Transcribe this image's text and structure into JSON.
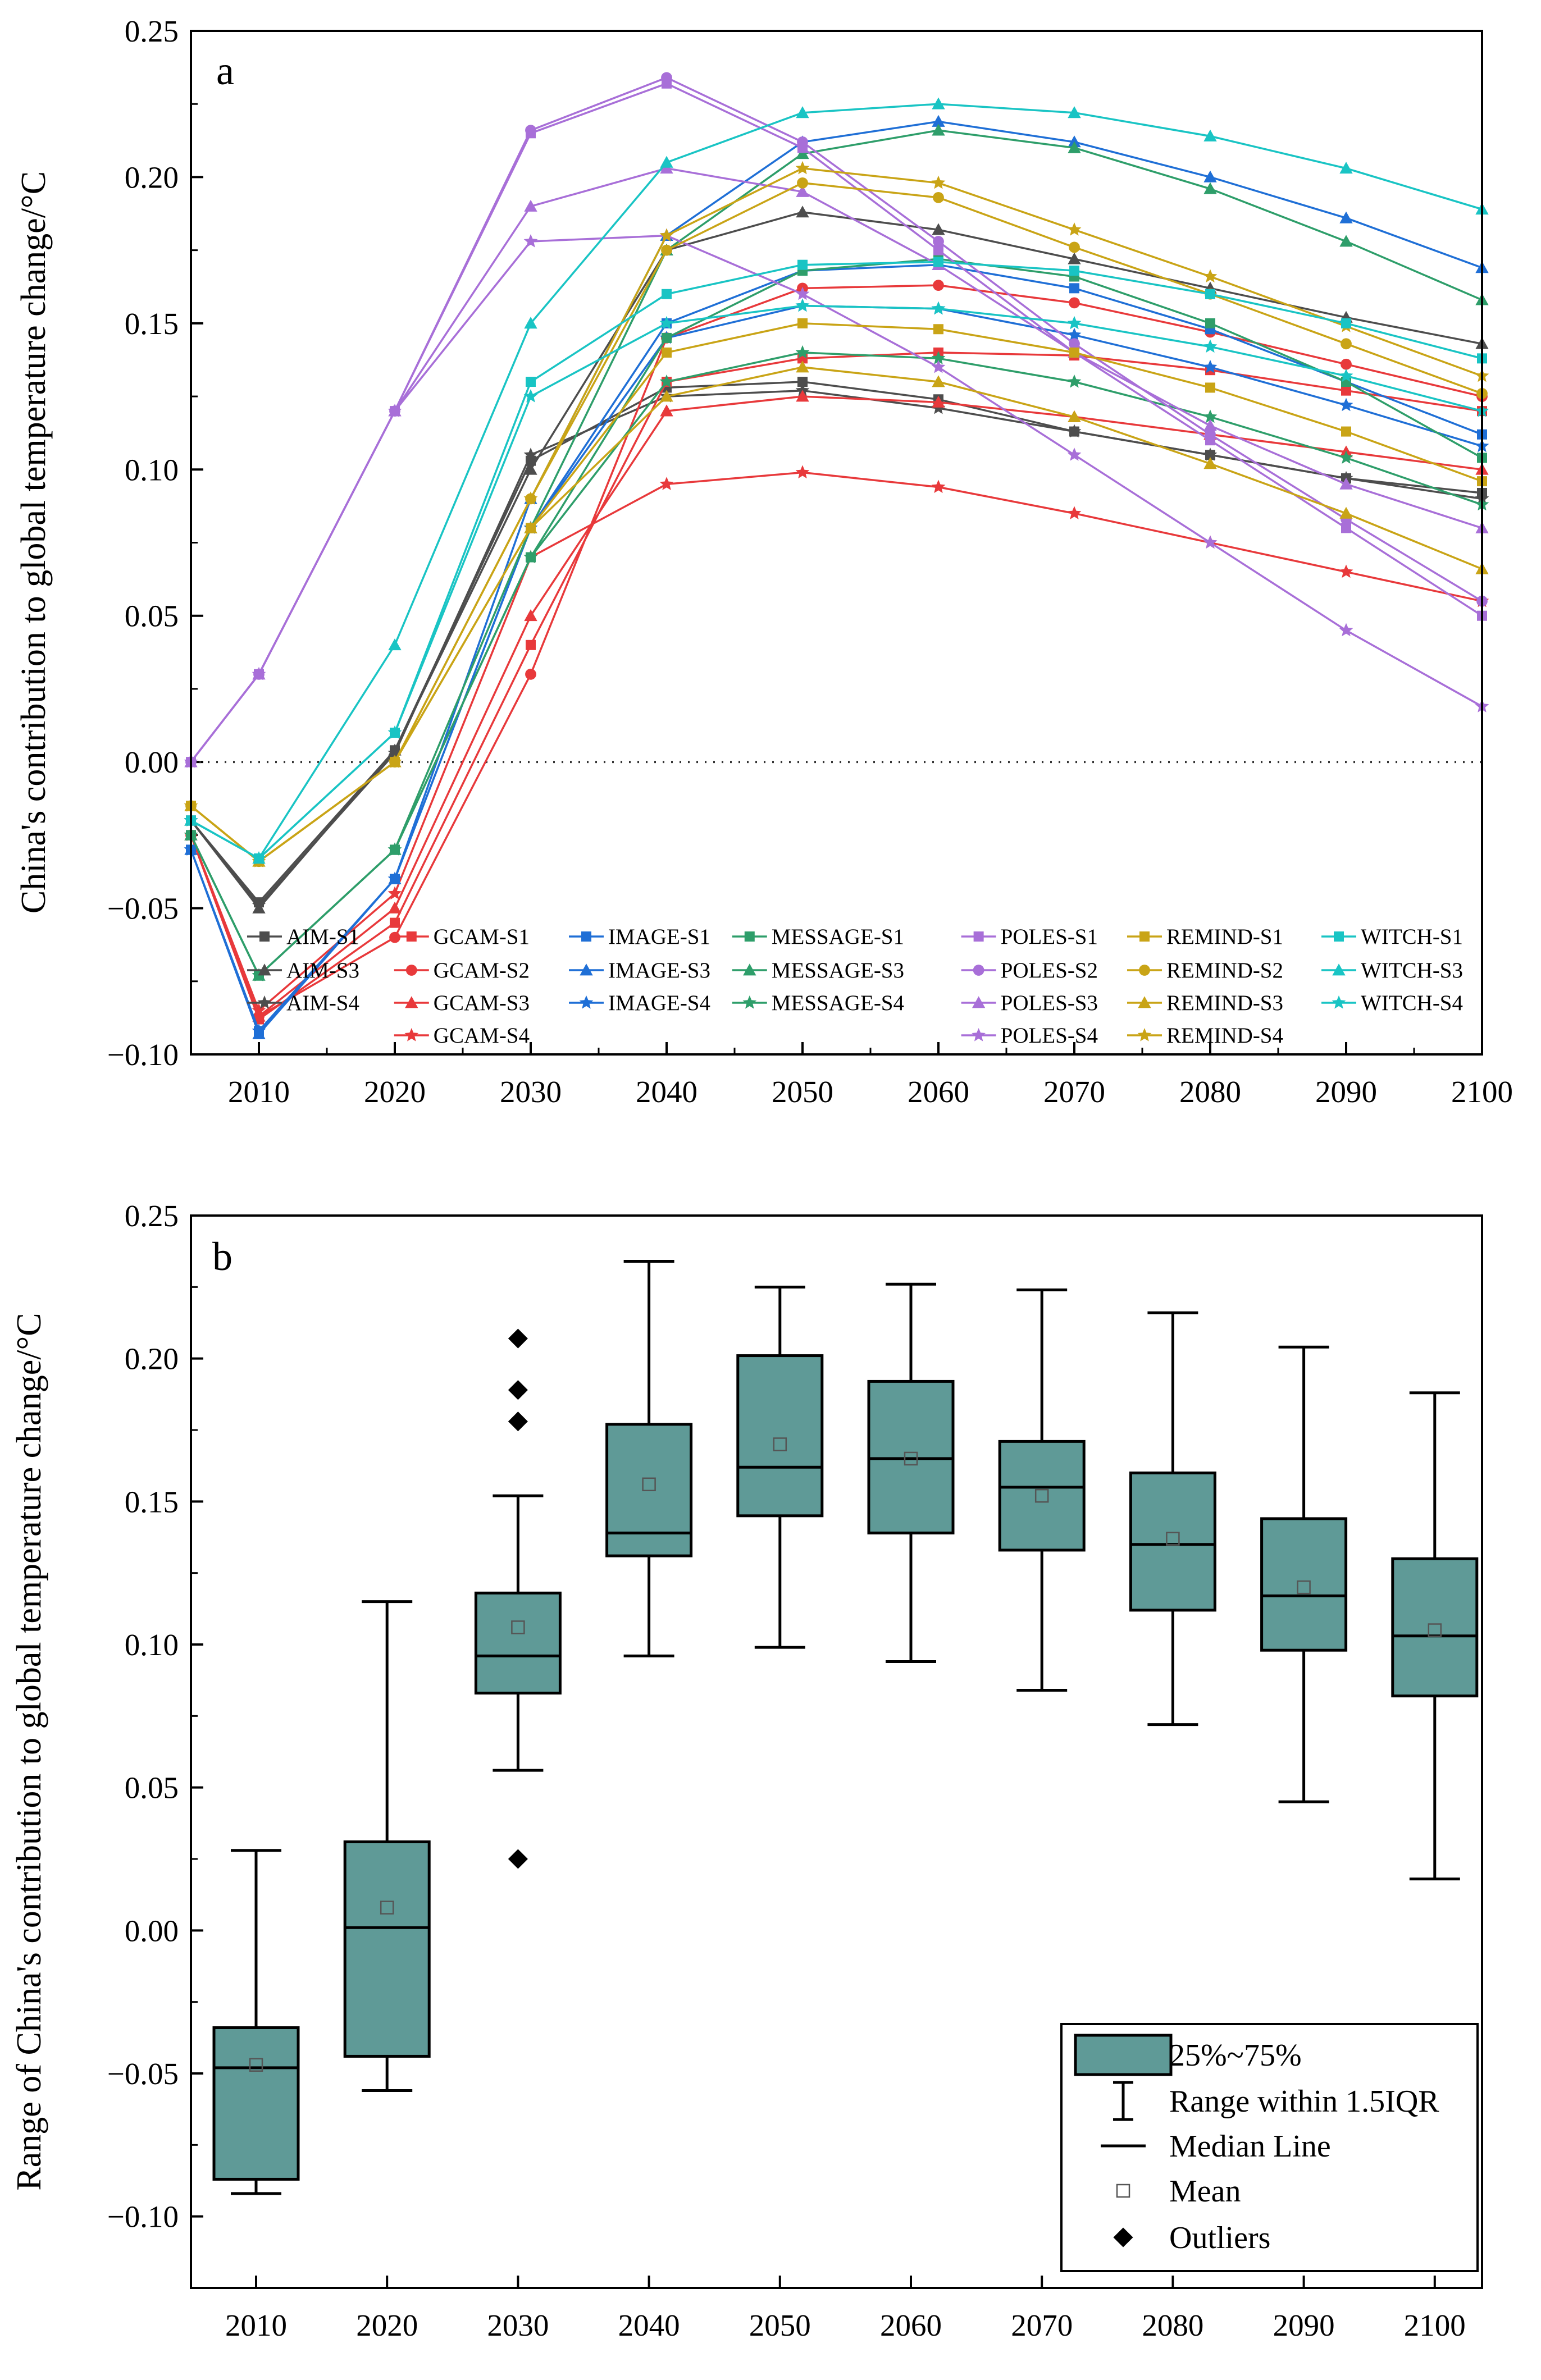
{
  "chart_data": [
    {
      "type": "line",
      "panel_label": "a",
      "ylabel": "China's contribution to global temperature change/°C",
      "xlabel": "",
      "xlim": [
        2005,
        2100
      ],
      "ylim": [
        -0.1,
        0.25
      ],
      "xticks": [
        2010,
        2020,
        2030,
        2040,
        2050,
        2060,
        2070,
        2080,
        2090,
        2100
      ],
      "xtick_labels": [
        "2010",
        "2020",
        "2030",
        "2040",
        "2050",
        "2060",
        "2070",
        "2080",
        "2090",
        "2100"
      ],
      "yticks": [
        -0.1,
        -0.05,
        0.0,
        0.05,
        0.1,
        0.15,
        0.2,
        0.25
      ],
      "ytick_labels": [
        "−0.10",
        "−0.05",
        "0.00",
        "0.05",
        "0.10",
        "0.15",
        "0.20",
        "0.25"
      ],
      "zero_line": "dotted",
      "grid": false,
      "legend_position": "bottom",
      "series": [
        {
          "name": "AIM-S1",
          "color": "#4d4d4d",
          "marker": "square",
          "x": [
            2005,
            2010,
            2020,
            2030,
            2040,
            2050,
            2060,
            2070,
            2080,
            2090,
            2100
          ],
          "values": [
            -0.02,
            -0.048,
            0.004,
            0.103,
            0.128,
            0.13,
            0.124,
            0.113,
            0.105,
            0.097,
            0.092
          ]
        },
        {
          "name": "AIM-S3",
          "color": "#4d4d4d",
          "marker": "triangle-up",
          "x": [
            2005,
            2010,
            2020,
            2030,
            2040,
            2050,
            2060,
            2070,
            2080,
            2090,
            2100
          ],
          "values": [
            -0.02,
            -0.05,
            0.004,
            0.1,
            0.175,
            0.188,
            0.182,
            0.172,
            0.162,
            0.152,
            0.143
          ]
        },
        {
          "name": "AIM-S4",
          "color": "#4d4d4d",
          "marker": "star",
          "x": [
            2005,
            2010,
            2020,
            2030,
            2040,
            2050,
            2060,
            2070,
            2080,
            2090,
            2100
          ],
          "values": [
            -0.02,
            -0.049,
            0.003,
            0.105,
            0.125,
            0.127,
            0.121,
            0.113,
            0.105,
            0.097,
            0.09
          ]
        },
        {
          "name": "GCAM-S1",
          "color": "#e8393b",
          "marker": "square",
          "x": [
            2005,
            2010,
            2020,
            2030,
            2040,
            2050,
            2060,
            2070,
            2080,
            2090,
            2100
          ],
          "values": [
            -0.025,
            -0.088,
            -0.055,
            0.04,
            0.13,
            0.138,
            0.14,
            0.139,
            0.134,
            0.127,
            0.12
          ]
        },
        {
          "name": "GCAM-S2",
          "color": "#e8393b",
          "marker": "circle",
          "x": [
            2005,
            2010,
            2020,
            2030,
            2040,
            2050,
            2060,
            2070,
            2080,
            2090,
            2100
          ],
          "values": [
            -0.025,
            -0.087,
            -0.06,
            0.03,
            0.145,
            0.162,
            0.163,
            0.157,
            0.147,
            0.136,
            0.125
          ]
        },
        {
          "name": "GCAM-S3",
          "color": "#e8393b",
          "marker": "triangle-up",
          "x": [
            2005,
            2010,
            2020,
            2030,
            2040,
            2050,
            2060,
            2070,
            2080,
            2090,
            2100
          ],
          "values": [
            -0.025,
            -0.087,
            -0.05,
            0.05,
            0.12,
            0.125,
            0.123,
            0.118,
            0.112,
            0.106,
            0.1
          ]
        },
        {
          "name": "GCAM-S4",
          "color": "#e8393b",
          "marker": "star",
          "x": [
            2005,
            2010,
            2020,
            2030,
            2040,
            2050,
            2060,
            2070,
            2080,
            2090,
            2100
          ],
          "values": [
            -0.025,
            -0.085,
            -0.045,
            0.07,
            0.095,
            0.099,
            0.094,
            0.085,
            0.075,
            0.065,
            0.055
          ]
        },
        {
          "name": "IMAGE-S1",
          "color": "#1f6fd6",
          "marker": "square",
          "x": [
            2005,
            2010,
            2020,
            2030,
            2040,
            2050,
            2060,
            2070,
            2080,
            2090,
            2100
          ],
          "values": [
            -0.03,
            -0.092,
            -0.04,
            0.08,
            0.15,
            0.168,
            0.17,
            0.162,
            0.148,
            0.13,
            0.112
          ]
        },
        {
          "name": "IMAGE-S3",
          "color": "#1f6fd6",
          "marker": "triangle-up",
          "x": [
            2005,
            2010,
            2020,
            2030,
            2040,
            2050,
            2060,
            2070,
            2080,
            2090,
            2100
          ],
          "values": [
            -0.03,
            -0.093,
            -0.04,
            0.09,
            0.18,
            0.212,
            0.219,
            0.212,
            0.2,
            0.186,
            0.169
          ]
        },
        {
          "name": "IMAGE-S4",
          "color": "#1f6fd6",
          "marker": "star",
          "x": [
            2005,
            2010,
            2020,
            2030,
            2040,
            2050,
            2060,
            2070,
            2080,
            2090,
            2100
          ],
          "values": [
            -0.03,
            -0.092,
            -0.04,
            0.08,
            0.145,
            0.156,
            0.155,
            0.146,
            0.135,
            0.122,
            0.108
          ]
        },
        {
          "name": "MESSAGE-S1",
          "color": "#2e9e6a",
          "marker": "square",
          "x": [
            2005,
            2010,
            2020,
            2030,
            2040,
            2050,
            2060,
            2070,
            2080,
            2090,
            2100
          ],
          "values": [
            -0.025,
            -0.073,
            -0.03,
            0.07,
            0.145,
            0.168,
            0.172,
            0.166,
            0.15,
            0.13,
            0.104
          ]
        },
        {
          "name": "MESSAGE-S3",
          "color": "#2e9e6a",
          "marker": "triangle-up",
          "x": [
            2005,
            2010,
            2020,
            2030,
            2040,
            2050,
            2060,
            2070,
            2080,
            2090,
            2100
          ],
          "values": [
            -0.025,
            -0.073,
            -0.03,
            0.08,
            0.175,
            0.208,
            0.216,
            0.21,
            0.196,
            0.178,
            0.158
          ]
        },
        {
          "name": "MESSAGE-S4",
          "color": "#2e9e6a",
          "marker": "star",
          "x": [
            2005,
            2010,
            2020,
            2030,
            2040,
            2050,
            2060,
            2070,
            2080,
            2090,
            2100
          ],
          "values": [
            -0.025,
            -0.073,
            -0.03,
            0.07,
            0.13,
            0.14,
            0.138,
            0.13,
            0.118,
            0.104,
            0.088
          ]
        },
        {
          "name": "POLES-S1",
          "color": "#a86fd8",
          "marker": "square",
          "x": [
            2005,
            2010,
            2020,
            2030,
            2040,
            2050,
            2060,
            2070,
            2080,
            2090,
            2100
          ],
          "values": [
            0.0,
            0.03,
            0.12,
            0.215,
            0.232,
            0.21,
            0.175,
            0.14,
            0.11,
            0.08,
            0.05
          ]
        },
        {
          "name": "POLES-S2",
          "color": "#a86fd8",
          "marker": "circle",
          "x": [
            2005,
            2010,
            2020,
            2030,
            2040,
            2050,
            2060,
            2070,
            2080,
            2090,
            2100
          ],
          "values": [
            0.0,
            0.03,
            0.12,
            0.216,
            0.234,
            0.212,
            0.178,
            0.143,
            0.112,
            0.083,
            0.055
          ]
        },
        {
          "name": "POLES-S3",
          "color": "#a86fd8",
          "marker": "triangle-up",
          "x": [
            2005,
            2010,
            2020,
            2030,
            2040,
            2050,
            2060,
            2070,
            2080,
            2090,
            2100
          ],
          "values": [
            0.0,
            0.03,
            0.12,
            0.19,
            0.203,
            0.195,
            0.17,
            0.14,
            0.115,
            0.095,
            0.08
          ]
        },
        {
          "name": "POLES-S4",
          "color": "#a86fd8",
          "marker": "star",
          "x": [
            2005,
            2010,
            2020,
            2030,
            2040,
            2050,
            2060,
            2070,
            2080,
            2090,
            2100
          ],
          "values": [
            0.0,
            0.03,
            0.12,
            0.178,
            0.18,
            0.16,
            0.135,
            0.105,
            0.075,
            0.045,
            0.019
          ]
        },
        {
          "name": "REMIND-S1",
          "color": "#c9a416",
          "marker": "square",
          "x": [
            2005,
            2010,
            2020,
            2030,
            2040,
            2050,
            2060,
            2070,
            2080,
            2090,
            2100
          ],
          "values": [
            -0.015,
            -0.034,
            0.0,
            0.08,
            0.14,
            0.15,
            0.148,
            0.14,
            0.128,
            0.113,
            0.096
          ]
        },
        {
          "name": "REMIND-S2",
          "color": "#c9a416",
          "marker": "circle",
          "x": [
            2005,
            2010,
            2020,
            2030,
            2040,
            2050,
            2060,
            2070,
            2080,
            2090,
            2100
          ],
          "values": [
            -0.015,
            -0.034,
            0.0,
            0.09,
            0.175,
            0.198,
            0.193,
            0.176,
            0.16,
            0.143,
            0.126
          ]
        },
        {
          "name": "REMIND-S3",
          "color": "#c9a416",
          "marker": "triangle-up",
          "x": [
            2005,
            2010,
            2020,
            2030,
            2040,
            2050,
            2060,
            2070,
            2080,
            2090,
            2100
          ],
          "values": [
            -0.015,
            -0.034,
            0.0,
            0.08,
            0.125,
            0.135,
            0.13,
            0.118,
            0.102,
            0.085,
            0.066
          ]
        },
        {
          "name": "REMIND-S4",
          "color": "#c9a416",
          "marker": "star",
          "x": [
            2005,
            2010,
            2020,
            2030,
            2040,
            2050,
            2060,
            2070,
            2080,
            2090,
            2100
          ],
          "values": [
            -0.015,
            -0.034,
            0.0,
            0.09,
            0.18,
            0.203,
            0.198,
            0.182,
            0.166,
            0.149,
            0.132
          ]
        },
        {
          "name": "WITCH-S1",
          "color": "#19c4c4",
          "marker": "square",
          "x": [
            2005,
            2010,
            2020,
            2030,
            2040,
            2050,
            2060,
            2070,
            2080,
            2090,
            2100
          ],
          "values": [
            -0.02,
            -0.033,
            0.01,
            0.13,
            0.16,
            0.17,
            0.171,
            0.168,
            0.16,
            0.15,
            0.138
          ]
        },
        {
          "name": "WITCH-S3",
          "color": "#19c4c4",
          "marker": "triangle-up",
          "x": [
            2005,
            2010,
            2020,
            2030,
            2040,
            2050,
            2060,
            2070,
            2080,
            2090,
            2100
          ],
          "values": [
            -0.02,
            -0.033,
            0.04,
            0.15,
            0.205,
            0.222,
            0.225,
            0.222,
            0.214,
            0.203,
            0.189
          ]
        },
        {
          "name": "WITCH-S4",
          "color": "#19c4c4",
          "marker": "star",
          "x": [
            2005,
            2010,
            2020,
            2030,
            2040,
            2050,
            2060,
            2070,
            2080,
            2090,
            2100
          ],
          "values": [
            -0.02,
            -0.033,
            0.01,
            0.125,
            0.15,
            0.156,
            0.155,
            0.15,
            0.142,
            0.132,
            0.12
          ]
        }
      ]
    },
    {
      "type": "box",
      "panel_label": "b",
      "ylabel": "Range of China's contribution to global temperature change/°C",
      "xlabel": "",
      "ylim": [
        -0.125,
        0.25
      ],
      "yticks": [
        -0.1,
        -0.05,
        0.0,
        0.05,
        0.1,
        0.15,
        0.2,
        0.25
      ],
      "ytick_labels": [
        "−0.10",
        "−0.05",
        "0.00",
        "0.05",
        "0.10",
        "0.15",
        "0.20",
        "0.25"
      ],
      "categories": [
        "2010",
        "2020",
        "2030",
        "2040",
        "2050",
        "2060",
        "2070",
        "2080",
        "2090",
        "2100"
      ],
      "box_color": "#5f9a97",
      "grid": false,
      "legend_position": "bottom-right",
      "boxes": [
        {
          "category": "2010",
          "whisker_low": -0.092,
          "q1": -0.087,
          "median": -0.048,
          "q3": -0.034,
          "whisker_high": 0.028,
          "mean": -0.047,
          "outliers": []
        },
        {
          "category": "2020",
          "whisker_low": -0.056,
          "q1": -0.044,
          "median": 0.001,
          "q3": 0.031,
          "whisker_high": 0.115,
          "mean": 0.008,
          "outliers": []
        },
        {
          "category": "2030",
          "whisker_low": 0.056,
          "q1": 0.083,
          "median": 0.096,
          "q3": 0.118,
          "whisker_high": 0.152,
          "mean": 0.106,
          "outliers": [
            0.207,
            0.189,
            0.178,
            0.025
          ]
        },
        {
          "category": "2040",
          "whisker_low": 0.096,
          "q1": 0.131,
          "median": 0.139,
          "q3": 0.177,
          "whisker_high": 0.234,
          "mean": 0.156,
          "outliers": []
        },
        {
          "category": "2050",
          "whisker_low": 0.099,
          "q1": 0.145,
          "median": 0.162,
          "q3": 0.201,
          "whisker_high": 0.225,
          "mean": 0.17,
          "outliers": []
        },
        {
          "category": "2060",
          "whisker_low": 0.094,
          "q1": 0.139,
          "median": 0.165,
          "q3": 0.192,
          "whisker_high": 0.226,
          "mean": 0.165,
          "outliers": []
        },
        {
          "category": "2070",
          "whisker_low": 0.084,
          "q1": 0.133,
          "median": 0.155,
          "q3": 0.171,
          "whisker_high": 0.224,
          "mean": 0.152,
          "outliers": []
        },
        {
          "category": "2080",
          "whisker_low": 0.072,
          "q1": 0.112,
          "median": 0.135,
          "q3": 0.16,
          "whisker_high": 0.216,
          "mean": 0.137,
          "outliers": []
        },
        {
          "category": "2090",
          "whisker_low": 0.045,
          "q1": 0.098,
          "median": 0.117,
          "q3": 0.144,
          "whisker_high": 0.204,
          "mean": 0.12,
          "outliers": []
        },
        {
          "category": "2100",
          "whisker_low": 0.018,
          "q1": 0.082,
          "median": 0.103,
          "q3": 0.13,
          "whisker_high": 0.188,
          "mean": 0.105,
          "outliers": []
        }
      ],
      "legend": [
        {
          "key": "box",
          "label": "25%~75%"
        },
        {
          "key": "whisker",
          "label": "Range within 1.5IQR"
        },
        {
          "key": "median",
          "label": "Median Line"
        },
        {
          "key": "mean",
          "label": "Mean"
        },
        {
          "key": "outlier",
          "label": "Outliers"
        }
      ]
    }
  ]
}
